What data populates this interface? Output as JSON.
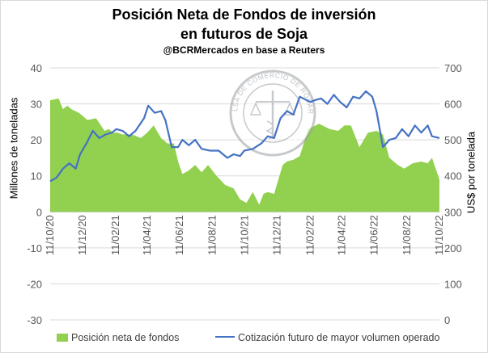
{
  "title_line1": "Posición Neta de Fondos de inversión",
  "title_line2": "en futuros de Soja",
  "subtitle": "@BCRMercados  en base a Reuters",
  "watermark_text": "BOLSA DE COMERCIO DE ROSARIO",
  "chart_data": {
    "type": "area+line",
    "ylabel_left": "Millones de toneladas",
    "ylabel_right": "US$ por tonelada",
    "ylim_left": [
      -30,
      40
    ],
    "ylim_right": [
      0,
      700
    ],
    "yticks_left": [
      -30,
      -20,
      -10,
      0,
      10,
      20,
      30,
      40
    ],
    "yticks_right": [
      0,
      100,
      200,
      300,
      400,
      500,
      600,
      700
    ],
    "x_tick_labels": [
      "11/10/20",
      "11/12/20",
      "11/02/21",
      "11/04/21",
      "11/06/21",
      "11/08/21",
      "11/10/21",
      "11/12/21",
      "11/02/22",
      "11/04/22",
      "11/06/22",
      "11/08/22",
      "11/10/22"
    ],
    "legend_position": "bottom",
    "series": [
      {
        "name": "Posición neta de fondos",
        "kind": "area",
        "axis": "left",
        "color": "#92d050",
        "x": [
          "2020-10-11",
          "2020-10-27",
          "2020-11-04",
          "2020-11-12",
          "2020-11-20",
          "2020-12-04",
          "2020-12-20",
          "2021-01-05",
          "2021-01-21",
          "2021-01-29",
          "2021-02-06",
          "2021-02-14",
          "2021-02-24",
          "2021-03-14",
          "2021-03-30",
          "2021-04-11",
          "2021-04-23",
          "2021-05-07",
          "2021-05-19",
          "2021-05-31",
          "2021-06-08",
          "2021-06-16",
          "2021-06-28",
          "2021-07-10",
          "2021-07-22",
          "2021-08-03",
          "2021-08-19",
          "2021-09-04",
          "2021-09-20",
          "2021-10-02",
          "2021-10-14",
          "2021-10-26",
          "2021-11-07",
          "2021-11-15",
          "2021-11-23",
          "2021-12-05",
          "2021-12-21",
          "2021-12-29",
          "2022-01-10",
          "2022-01-22",
          "2022-02-07",
          "2022-02-27",
          "2022-03-19",
          "2022-04-04",
          "2022-04-16",
          "2022-04-28",
          "2022-05-14",
          "2022-05-30",
          "2022-06-15",
          "2022-06-27",
          "2022-07-09",
          "2022-07-25",
          "2022-08-06",
          "2022-08-22",
          "2022-09-07",
          "2022-09-19",
          "2022-09-27",
          "2022-10-11"
        ],
        "values": [
          31.0,
          31.5,
          28.5,
          29.5,
          28.5,
          27.5,
          25.5,
          26.0,
          22.5,
          23.0,
          22.0,
          22.0,
          21.5,
          21.5,
          20.5,
          22.0,
          24.0,
          20.5,
          19.0,
          19.0,
          14.0,
          10.5,
          11.5,
          13.0,
          11.0,
          13.0,
          10.0,
          7.5,
          6.5,
          3.5,
          2.5,
          5.5,
          2.0,
          5.0,
          5.5,
          5.0,
          13.0,
          14.0,
          14.5,
          15.5,
          23.0,
          24.5,
          23.0,
          22.5,
          24.0,
          24.0,
          18.0,
          22.0,
          22.5,
          21.5,
          15.0,
          13.0,
          12.0,
          13.5,
          14.0,
          13.5,
          15.0,
          9.0
        ]
      },
      {
        "name": "Cotización futuro de mayor volumen operado",
        "kind": "line",
        "axis": "right",
        "color": "#4472c4",
        "x": [
          "2020-10-11",
          "2020-10-23",
          "2020-11-04",
          "2020-11-16",
          "2020-11-28",
          "2020-12-06",
          "2020-12-18",
          "2020-12-30",
          "2021-01-11",
          "2021-01-23",
          "2021-02-04",
          "2021-02-12",
          "2021-02-24",
          "2021-03-08",
          "2021-03-20",
          "2021-04-05",
          "2021-04-13",
          "2021-04-25",
          "2021-05-07",
          "2021-05-15",
          "2021-05-27",
          "2021-06-08",
          "2021-06-16",
          "2021-06-28",
          "2021-07-10",
          "2021-07-22",
          "2021-08-07",
          "2021-08-23",
          "2021-09-08",
          "2021-09-20",
          "2021-10-02",
          "2021-10-10",
          "2021-10-26",
          "2021-11-11",
          "2021-11-23",
          "2021-12-05",
          "2021-12-17",
          "2021-12-29",
          "2022-01-10",
          "2022-01-22",
          "2022-02-11",
          "2022-02-19",
          "2022-03-03",
          "2022-03-15",
          "2022-03-27",
          "2022-04-08",
          "2022-04-20",
          "2022-05-02",
          "2022-05-14",
          "2022-05-26",
          "2022-06-07",
          "2022-06-15",
          "2022-06-27",
          "2022-07-09",
          "2022-07-21",
          "2022-08-02",
          "2022-08-14",
          "2022-08-26",
          "2022-09-07",
          "2022-09-19",
          "2022-09-27",
          "2022-10-11"
        ],
        "values": [
          385,
          395,
          420,
          435,
          420,
          460,
          490,
          525,
          505,
          515,
          520,
          530,
          525,
          510,
          525,
          560,
          595,
          575,
          580,
          555,
          480,
          480,
          500,
          485,
          500,
          475,
          470,
          470,
          450,
          460,
          455,
          470,
          475,
          490,
          510,
          505,
          560,
          580,
          570,
          620,
          605,
          610,
          615,
          600,
          625,
          605,
          590,
          620,
          615,
          635,
          620,
          580,
          480,
          500,
          505,
          530,
          510,
          540,
          520,
          540,
          510,
          505
        ]
      }
    ]
  }
}
